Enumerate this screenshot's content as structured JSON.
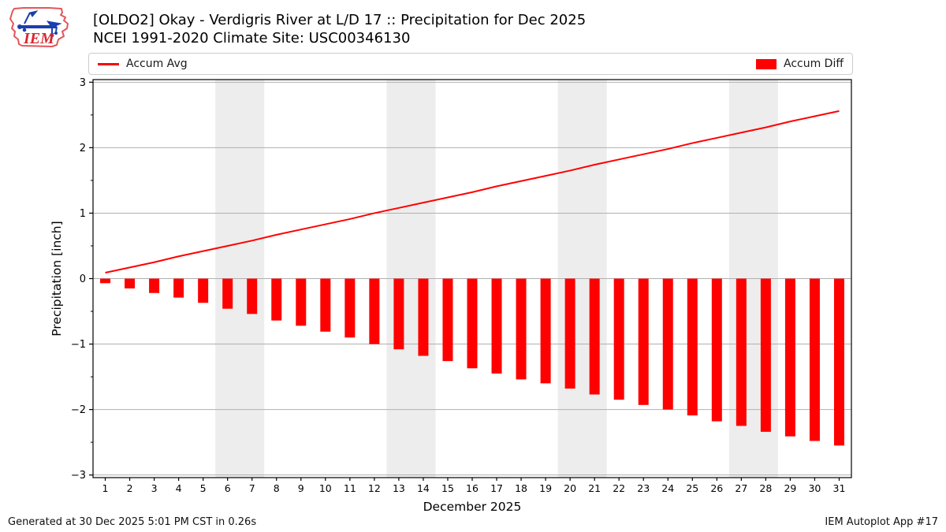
{
  "header": {
    "title_line1": "[OLDO2] Okay - Verdigris River at L/D 17 :: Precipitation for Dec 2025",
    "title_line2": "NCEI 1991-2020 Climate Site: USC00346130",
    "logo_text": "IEM"
  },
  "legend": {
    "items": [
      {
        "label": "Accum Avg",
        "type": "line",
        "color": "#ff0000"
      },
      {
        "label": "Accum Diff",
        "type": "bar",
        "color": "#ff0000"
      }
    ]
  },
  "footer": {
    "left": "Generated at 30 Dec 2025 5:01 PM CST in 0.26s",
    "right": "IEM Autoplot App #17"
  },
  "chart_data": {
    "type": "bar",
    "title": "[OLDO2] Okay - Verdigris River at L/D 17 :: Precipitation for Dec 2025",
    "subtitle": "NCEI 1991-2020 Climate Site: USC00346130",
    "xlabel": "December 2025",
    "ylabel": "Precipitation [inch]",
    "ylim": [
      -3,
      3
    ],
    "yticks": [
      -3,
      -2,
      -1,
      0,
      1,
      2,
      3
    ],
    "y_minor_ticks": [
      -2.5,
      -1.5,
      -0.5,
      0.5,
      1.5,
      2.5
    ],
    "grid": true,
    "legend_position": "top",
    "x": [
      1,
      2,
      3,
      4,
      5,
      6,
      7,
      8,
      9,
      10,
      11,
      12,
      13,
      14,
      15,
      16,
      17,
      18,
      19,
      20,
      21,
      22,
      23,
      24,
      25,
      26,
      27,
      28,
      29,
      30,
      31
    ],
    "series": [
      {
        "name": "Accum Avg",
        "type": "line",
        "color": "#ff0000",
        "values": [
          0.09,
          0.17,
          0.25,
          0.34,
          0.42,
          0.5,
          0.58,
          0.67,
          0.75,
          0.83,
          0.91,
          1.0,
          1.08,
          1.16,
          1.24,
          1.32,
          1.41,
          1.49,
          1.57,
          1.65,
          1.74,
          1.82,
          1.9,
          1.98,
          2.07,
          2.15,
          2.23,
          2.31,
          2.4,
          2.48,
          2.56
        ]
      },
      {
        "name": "Accum Diff",
        "type": "bar",
        "color": "#ff0000",
        "values": [
          -0.07,
          -0.15,
          -0.22,
          -0.29,
          -0.37,
          -0.46,
          -0.54,
          -0.64,
          -0.72,
          -0.81,
          -0.9,
          -1.0,
          -1.08,
          -1.18,
          -1.26,
          -1.37,
          -1.45,
          -1.54,
          -1.6,
          -1.68,
          -1.77,
          -1.85,
          -1.93,
          -2.0,
          -2.09,
          -2.18,
          -2.25,
          -2.34,
          -2.41,
          -2.48,
          -2.55
        ]
      }
    ],
    "weekend_bands": [
      [
        5.5,
        7.5
      ],
      [
        12.5,
        14.5
      ],
      [
        19.5,
        21.5
      ],
      [
        26.5,
        28.5
      ]
    ],
    "colors": {
      "band": "#ededed",
      "grid": "#b0b0b0",
      "axis": "#000000"
    }
  }
}
